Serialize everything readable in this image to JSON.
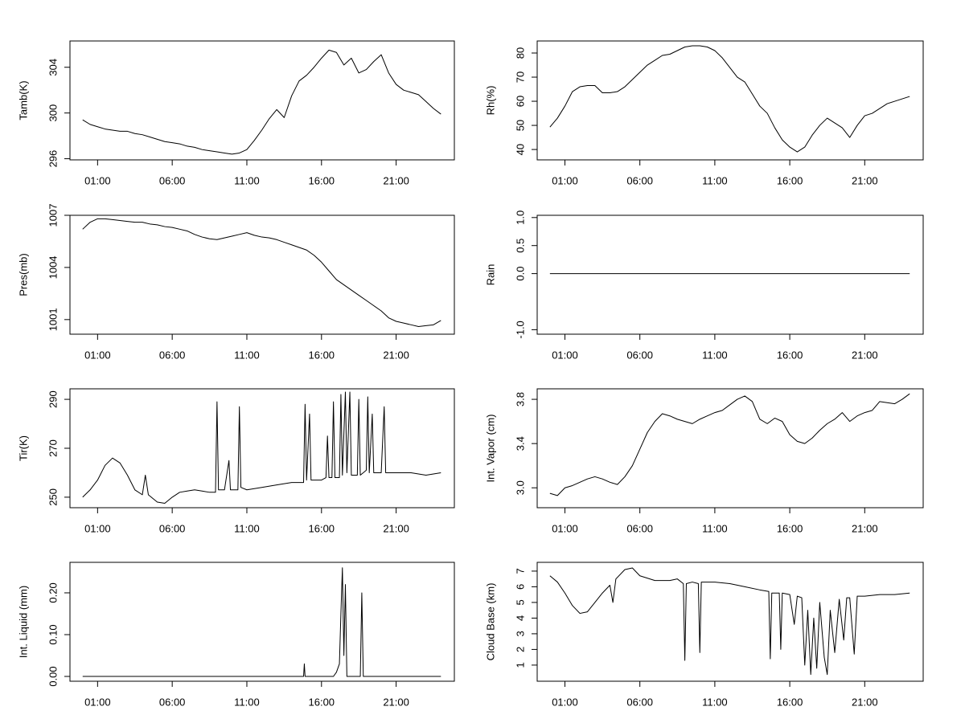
{
  "chart_data": [
    {
      "type": "line",
      "ylabel": "Tamb(K)",
      "color": "#000000",
      "xlim": [
        -0.85,
        24.9
      ],
      "ylim": [
        295.9,
        306.3
      ],
      "xticks": [
        {
          "value": 1,
          "label": "01:00"
        },
        {
          "value": 6,
          "label": "06:00"
        },
        {
          "value": 11,
          "label": "11:00"
        },
        {
          "value": 16,
          "label": "16:00"
        },
        {
          "value": 21,
          "label": "21:00"
        }
      ],
      "yticks": [
        296,
        300,
        304
      ],
      "x": [
        0,
        0.5,
        1,
        1.5,
        2,
        2.5,
        3,
        3.5,
        4,
        4.5,
        5,
        5.5,
        6,
        6.5,
        7,
        7.5,
        8,
        8.5,
        9,
        9.5,
        10,
        10.5,
        11,
        11.5,
        12,
        12.5,
        13,
        13.5,
        14,
        14.5,
        15,
        15.5,
        16,
        16.5,
        17,
        17.5,
        18,
        18.5,
        19,
        19.5,
        20,
        20.5,
        21,
        21.5,
        22,
        22.5,
        23,
        23.5,
        24
      ],
      "values": [
        299.4,
        299.0,
        298.8,
        298.6,
        298.5,
        298.4,
        298.4,
        298.2,
        298.1,
        297.9,
        297.7,
        297.5,
        297.4,
        297.3,
        297.1,
        297.0,
        296.8,
        296.7,
        296.6,
        296.5,
        296.4,
        296.5,
        296.8,
        297.6,
        298.5,
        299.5,
        300.3,
        299.6,
        301.5,
        302.8,
        303.3,
        304.0,
        304.8,
        305.5,
        305.3,
        304.2,
        304.8,
        303.5,
        303.8,
        304.5,
        305.1,
        303.5,
        302.5,
        302.0,
        301.8,
        301.6,
        301.0,
        300.4,
        299.9
      ]
    },
    {
      "type": "line",
      "ylabel": "Rh(%)",
      "color": "#000000",
      "xlim": [
        -0.85,
        24.9
      ],
      "ylim": [
        35.7,
        85
      ],
      "xticks": [
        {
          "value": 1,
          "label": "01:00"
        },
        {
          "value": 6,
          "label": "06:00"
        },
        {
          "value": 11,
          "label": "11:00"
        },
        {
          "value": 16,
          "label": "16:00"
        },
        {
          "value": 21,
          "label": "21:00"
        }
      ],
      "yticks": [
        40,
        50,
        60,
        70,
        80
      ],
      "x": [
        0,
        0.5,
        1,
        1.5,
        2,
        2.5,
        3,
        3.5,
        4,
        4.5,
        5,
        5.5,
        6,
        6.5,
        7,
        7.5,
        8,
        8.5,
        9,
        9.5,
        10,
        10.5,
        11,
        11.5,
        12,
        12.5,
        13,
        13.5,
        14,
        14.5,
        15,
        15.5,
        16,
        16.5,
        17,
        17.5,
        18,
        18.5,
        19,
        19.5,
        20,
        20.5,
        21,
        21.5,
        22,
        22.5,
        23,
        23.5,
        24
      ],
      "values": [
        49.3,
        53,
        58,
        64,
        66,
        66.5,
        66.5,
        63.5,
        63.5,
        64,
        66,
        69,
        72,
        75,
        77,
        79,
        79.5,
        81,
        82.5,
        83,
        83,
        82.5,
        81,
        78,
        74,
        70,
        68,
        63,
        58,
        55,
        49,
        44,
        41,
        39,
        41,
        46,
        50,
        53,
        51,
        49,
        45,
        50,
        54,
        55,
        57,
        59,
        60,
        61,
        62
      ]
    },
    {
      "type": "line",
      "ylabel": "Pres(mb)",
      "color": "#000000",
      "xlim": [
        -0.85,
        24.9
      ],
      "ylim": [
        1000.16,
        1007.0
      ],
      "xticks": [
        {
          "value": 1,
          "label": "01:00"
        },
        {
          "value": 6,
          "label": "06:00"
        },
        {
          "value": 11,
          "label": "11:00"
        },
        {
          "value": 16,
          "label": "16:00"
        },
        {
          "value": 21,
          "label": "21:00"
        }
      ],
      "yticks": [
        1001,
        1004,
        1007
      ],
      "x": [
        0,
        0.5,
        1,
        1.5,
        2,
        2.5,
        3,
        3.5,
        4,
        4.5,
        5,
        5.5,
        6,
        6.5,
        7,
        7.5,
        8,
        8.5,
        9,
        9.5,
        10,
        10.5,
        11,
        11.5,
        12,
        12.5,
        13,
        13.5,
        14,
        14.5,
        15,
        15.5,
        16,
        16.5,
        17,
        17.5,
        18,
        18.5,
        19,
        19.5,
        20,
        20.5,
        21,
        21.5,
        22,
        22.5,
        23,
        23.5,
        24
      ],
      "values": [
        1006.2,
        1006.6,
        1006.8,
        1006.8,
        1006.75,
        1006.7,
        1006.65,
        1006.6,
        1006.6,
        1006.5,
        1006.45,
        1006.35,
        1006.3,
        1006.2,
        1006.1,
        1005.9,
        1005.75,
        1005.65,
        1005.6,
        1005.7,
        1005.8,
        1005.9,
        1006.0,
        1005.85,
        1005.75,
        1005.7,
        1005.6,
        1005.45,
        1005.3,
        1005.15,
        1005.0,
        1004.7,
        1004.3,
        1003.8,
        1003.3,
        1003.0,
        1002.7,
        1002.4,
        1002.1,
        1001.8,
        1001.5,
        1001.1,
        1000.9,
        1000.8,
        1000.7,
        1000.6,
        1000.65,
        1000.7,
        1000.95
      ]
    },
    {
      "type": "line",
      "ylabel": "Rain",
      "color": "#000000",
      "xlim": [
        -0.85,
        24.9
      ],
      "ylim": [
        -1.08,
        1.04
      ],
      "xticks": [
        {
          "value": 1,
          "label": "01:00"
        },
        {
          "value": 6,
          "label": "06:00"
        },
        {
          "value": 11,
          "label": "11:00"
        },
        {
          "value": 16,
          "label": "16:00"
        },
        {
          "value": 21,
          "label": "21:00"
        }
      ],
      "yticks": [
        {
          "value": -1,
          "label": "-1.0"
        },
        {
          "value": 0,
          "label": "0.0"
        },
        {
          "value": 0.5,
          "label": "0.5"
        },
        {
          "value": 1,
          "label": "1.0"
        }
      ],
      "x": [
        0,
        24
      ],
      "values": [
        0,
        0
      ]
    },
    {
      "type": "line",
      "ylabel": "Tir(K)",
      "color": "#000000",
      "xlim": [
        -0.85,
        24.9
      ],
      "ylim": [
        245.7,
        294.3
      ],
      "xticks": [
        {
          "value": 1,
          "label": "01:00"
        },
        {
          "value": 6,
          "label": "06:00"
        },
        {
          "value": 11,
          "label": "11:00"
        },
        {
          "value": 16,
          "label": "16:00"
        },
        {
          "value": 21,
          "label": "21:00"
        }
      ],
      "yticks": [
        250,
        270,
        290
      ],
      "x": [
        0,
        0.5,
        1,
        1.5,
        2,
        2.5,
        3,
        3.5,
        4,
        4.2,
        4.4,
        5,
        5.5,
        6,
        6.5,
        7,
        7.5,
        8,
        8.5,
        8.9,
        9,
        9.1,
        9.5,
        9.8,
        9.9,
        10.4,
        10.5,
        10.6,
        11,
        12,
        13,
        14,
        14.8,
        14.9,
        15,
        15.2,
        15.3,
        16,
        16.3,
        16.4,
        16.5,
        16.7,
        16.8,
        16.9,
        17.2,
        17.3,
        17.4,
        17.6,
        17.7,
        17.9,
        18,
        18.4,
        18.5,
        18.6,
        19,
        19.1,
        19.2,
        19.4,
        19.5,
        20,
        20.2,
        20.3,
        21,
        22,
        23,
        24
      ],
      "values": [
        250,
        253,
        257,
        263,
        266,
        264,
        259,
        253,
        251,
        259,
        251,
        248,
        247.5,
        250,
        252,
        252.5,
        253,
        252.5,
        252,
        252,
        289,
        253,
        253,
        265,
        253,
        253,
        287,
        254,
        253,
        254,
        255,
        256,
        256,
        288,
        257,
        284,
        257,
        257,
        258,
        275,
        258,
        258,
        289,
        258,
        258,
        292,
        259,
        293,
        260,
        293,
        259,
        259,
        290,
        259,
        261,
        291,
        260,
        284,
        260,
        260,
        287,
        260,
        260,
        260,
        259,
        260
      ]
    },
    {
      "type": "line",
      "ylabel": "Int. Vapor (cm)",
      "color": "#000000",
      "xlim": [
        -0.85,
        24.9
      ],
      "ylim": [
        2.82,
        3.895
      ],
      "xticks": [
        {
          "value": 1,
          "label": "01:00"
        },
        {
          "value": 6,
          "label": "06:00"
        },
        {
          "value": 11,
          "label": "11:00"
        },
        {
          "value": 16,
          "label": "16:00"
        },
        {
          "value": 21,
          "label": "21:00"
        }
      ],
      "yticks": [
        {
          "value": 3,
          "label": "3.0"
        },
        3.4,
        3.8
      ],
      "x": [
        0,
        0.5,
        1,
        1.5,
        2,
        2.5,
        3,
        3.5,
        4,
        4.5,
        5,
        5.5,
        6,
        6.5,
        7,
        7.5,
        8,
        8.5,
        9,
        9.5,
        10,
        10.5,
        11,
        11.5,
        12,
        12.5,
        13,
        13.5,
        14,
        14.5,
        15,
        15.5,
        16,
        16.5,
        17,
        17.5,
        18,
        18.5,
        19,
        19.5,
        20,
        20.5,
        21,
        21.5,
        22,
        22.5,
        23,
        23.5,
        24
      ],
      "values": [
        2.95,
        2.93,
        3.0,
        3.02,
        3.05,
        3.08,
        3.1,
        3.08,
        3.05,
        3.03,
        3.1,
        3.2,
        3.35,
        3.5,
        3.6,
        3.67,
        3.65,
        3.62,
        3.6,
        3.58,
        3.62,
        3.65,
        3.68,
        3.7,
        3.75,
        3.8,
        3.83,
        3.78,
        3.62,
        3.58,
        3.63,
        3.6,
        3.48,
        3.42,
        3.4,
        3.45,
        3.52,
        3.58,
        3.62,
        3.68,
        3.6,
        3.65,
        3.68,
        3.7,
        3.78,
        3.77,
        3.76,
        3.8,
        3.85
      ]
    },
    {
      "type": "line",
      "ylabel": "Int. Liquid (mm)",
      "color": "#000000",
      "xlim": [
        -0.85,
        24.9
      ],
      "ylim": [
        -0.0115,
        0.273
      ],
      "xticks": [
        {
          "value": 1,
          "label": "01:00"
        },
        {
          "value": 6,
          "label": "06:00"
        },
        {
          "value": 11,
          "label": "11:00"
        },
        {
          "value": 16,
          "label": "16:00"
        },
        {
          "value": 21,
          "label": "21:00"
        }
      ],
      "yticks": [
        {
          "value": 0,
          "label": "0.00"
        },
        {
          "value": 0.1,
          "label": "0.10"
        },
        {
          "value": 0.2,
          "label": "0.20"
        }
      ],
      "x": [
        0,
        14.8,
        14.85,
        14.9,
        16.8,
        17,
        17.2,
        17.3,
        17.4,
        17.5,
        17.6,
        17.7,
        18.6,
        18.7,
        18.8,
        24
      ],
      "values": [
        0,
        0,
        0.03,
        0,
        0,
        0.01,
        0.03,
        0.15,
        0.26,
        0.05,
        0.22,
        0,
        0,
        0.2,
        0,
        0
      ]
    },
    {
      "type": "line",
      "ylabel": "Cloud Base (km)",
      "color": "#000000",
      "xlim": [
        -0.85,
        24.9
      ],
      "ylim": [
        -0.03,
        7.56
      ],
      "xticks": [
        {
          "value": 1,
          "label": "01:00"
        },
        {
          "value": 6,
          "label": "06:00"
        },
        {
          "value": 11,
          "label": "11:00"
        },
        {
          "value": 16,
          "label": "16:00"
        },
        {
          "value": 21,
          "label": "21:00"
        }
      ],
      "yticks": [
        1,
        2,
        3,
        4,
        5,
        6,
        7
      ],
      "x": [
        0,
        0.5,
        1,
        1.5,
        2,
        2.5,
        3,
        3.5,
        4,
        4.2,
        4.4,
        5,
        5.5,
        6,
        7,
        8,
        8.5,
        8.9,
        9,
        9.1,
        9.5,
        9.9,
        10,
        10.1,
        11,
        12,
        13,
        14,
        14.6,
        14.7,
        14.8,
        15.3,
        15.4,
        15.5,
        16,
        16.3,
        16.5,
        16.8,
        17,
        17.2,
        17.4,
        17.6,
        17.8,
        18,
        18.3,
        18.5,
        18.7,
        19,
        19.3,
        19.6,
        19.8,
        20,
        20.3,
        20.5,
        21,
        22,
        23,
        24
      ],
      "values": [
        6.7,
        6.3,
        5.6,
        4.8,
        4.3,
        4.4,
        5.0,
        5.6,
        6.1,
        5.0,
        6.5,
        7.1,
        7.2,
        6.7,
        6.4,
        6.4,
        6.5,
        6.2,
        1.3,
        6.2,
        6.3,
        6.2,
        1.8,
        6.3,
        6.3,
        6.2,
        6.0,
        5.8,
        5.7,
        1.4,
        5.6,
        5.6,
        2.0,
        5.6,
        5.5,
        3.6,
        5.4,
        5.3,
        1.0,
        4.5,
        0.4,
        4.0,
        0.8,
        5.0,
        1.5,
        0.4,
        4.5,
        1.8,
        5.2,
        2.6,
        5.3,
        5.3,
        1.7,
        5.4,
        5.4,
        5.5,
        5.5,
        5.6
      ]
    }
  ]
}
